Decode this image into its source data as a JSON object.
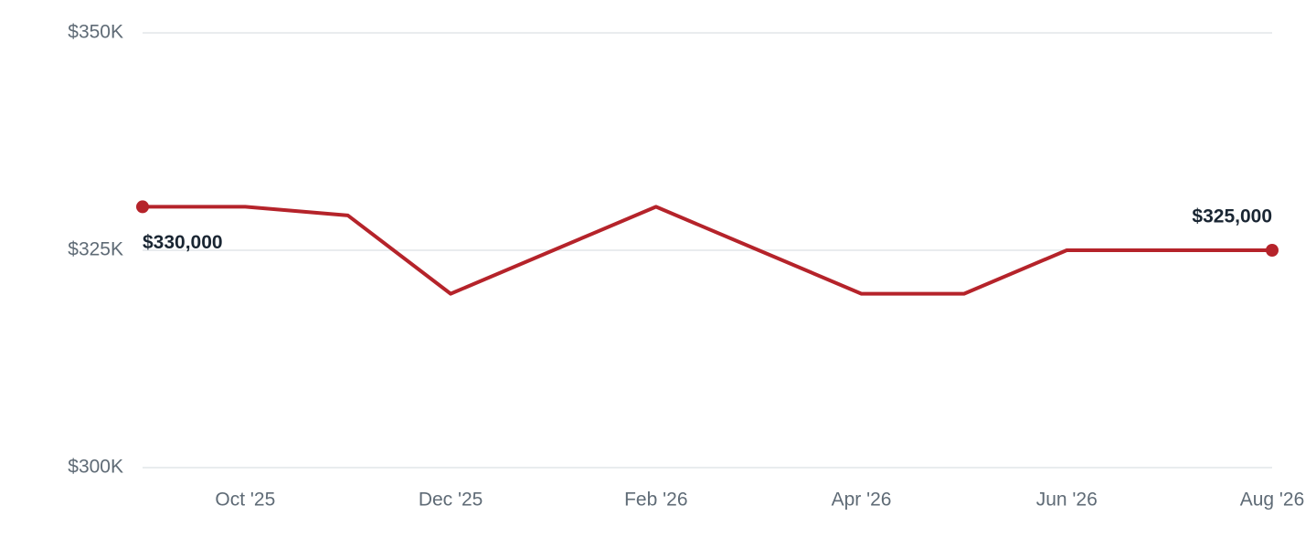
{
  "chart_data": {
    "type": "line",
    "categories": [
      null,
      "Oct '25",
      null,
      "Dec '25",
      null,
      "Feb '26",
      null,
      "Apr '26",
      null,
      "Jun '26",
      null,
      "Aug '26"
    ],
    "series": [
      {
        "color": "#b5232a",
        "values": [
          330000,
          330000,
          329000,
          320000,
          325000,
          330000,
          325000,
          320000,
          320000,
          325000,
          325000,
          325000
        ],
        "value_labels": [
          "$330,000",
          null,
          null,
          null,
          null,
          null,
          null,
          null,
          null,
          null,
          null,
          "$325,000"
        ]
      }
    ],
    "ylim": [
      300000,
      350000
    ],
    "yticks": [
      {
        "value": 300000,
        "label": "$300K"
      },
      {
        "value": 325000,
        "label": "$325K"
      },
      {
        "value": 350000,
        "label": "$350K"
      }
    ],
    "grid": true
  }
}
